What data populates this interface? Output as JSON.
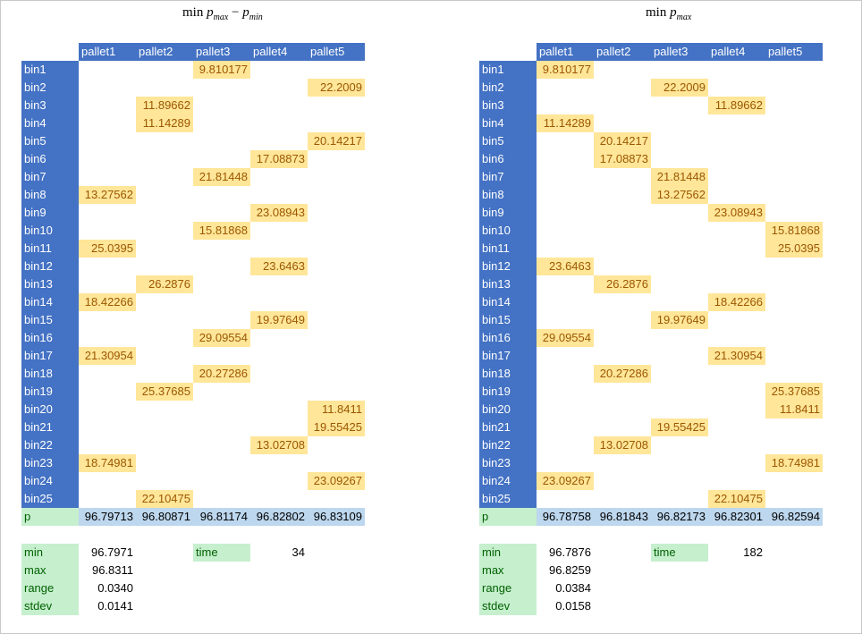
{
  "panels": [
    {
      "title_main": "min",
      "title_sub1": "max",
      "title_op": "−",
      "title_sub2": "min",
      "headers": [
        "pallet1",
        "pallet2",
        "pallet3",
        "pallet4",
        "pallet5"
      ],
      "rows": [
        {
          "label": "bin1",
          "col": 2,
          "value": "9.810177"
        },
        {
          "label": "bin2",
          "col": 4,
          "value": "22.2009"
        },
        {
          "label": "bin3",
          "col": 1,
          "value": "11.89662"
        },
        {
          "label": "bin4",
          "col": 1,
          "value": "11.14289"
        },
        {
          "label": "bin5",
          "col": 4,
          "value": "20.14217"
        },
        {
          "label": "bin6",
          "col": 3,
          "value": "17.08873"
        },
        {
          "label": "bin7",
          "col": 2,
          "value": "21.81448"
        },
        {
          "label": "bin8",
          "col": 0,
          "value": "13.27562"
        },
        {
          "label": "bin9",
          "col": 3,
          "value": "23.08943"
        },
        {
          "label": "bin10",
          "col": 2,
          "value": "15.81868"
        },
        {
          "label": "bin11",
          "col": 0,
          "value": "25.0395"
        },
        {
          "label": "bin12",
          "col": 3,
          "value": "23.6463"
        },
        {
          "label": "bin13",
          "col": 1,
          "value": "26.2876"
        },
        {
          "label": "bin14",
          "col": 0,
          "value": "18.42266"
        },
        {
          "label": "bin15",
          "col": 3,
          "value": "19.97649"
        },
        {
          "label": "bin16",
          "col": 2,
          "value": "29.09554"
        },
        {
          "label": "bin17",
          "col": 0,
          "value": "21.30954"
        },
        {
          "label": "bin18",
          "col": 2,
          "value": "20.27286"
        },
        {
          "label": "bin19",
          "col": 1,
          "value": "25.37685"
        },
        {
          "label": "bin20",
          "col": 4,
          "value": "11.8411"
        },
        {
          "label": "bin21",
          "col": 4,
          "value": "19.55425"
        },
        {
          "label": "bin22",
          "col": 3,
          "value": "13.02708"
        },
        {
          "label": "bin23",
          "col": 0,
          "value": "18.74981"
        },
        {
          "label": "bin24",
          "col": 4,
          "value": "23.09267"
        },
        {
          "label": "bin25",
          "col": 1,
          "value": "22.10475"
        }
      ],
      "p_label": "p",
      "p_values": [
        "96.79713",
        "96.80871",
        "96.81174",
        "96.82802",
        "96.83109"
      ],
      "stats": [
        {
          "label": "min",
          "value": "96.7971"
        },
        {
          "label": "max",
          "value": "96.8311"
        },
        {
          "label": "range",
          "value": "0.0340"
        },
        {
          "label": "stdev",
          "value": "0.0141"
        }
      ],
      "time_label": "time",
      "time_value": "34"
    },
    {
      "title_main": "min",
      "title_sub1": "max",
      "title_op": "",
      "title_sub2": "",
      "headers": [
        "pallet1",
        "pallet2",
        "pallet3",
        "pallet4",
        "pallet5"
      ],
      "rows": [
        {
          "label": "bin1",
          "col": 0,
          "value": "9.810177"
        },
        {
          "label": "bin2",
          "col": 2,
          "value": "22.2009"
        },
        {
          "label": "bin3",
          "col": 3,
          "value": "11.89662"
        },
        {
          "label": "bin4",
          "col": 0,
          "value": "11.14289"
        },
        {
          "label": "bin5",
          "col": 1,
          "value": "20.14217"
        },
        {
          "label": "bin6",
          "col": 1,
          "value": "17.08873"
        },
        {
          "label": "bin7",
          "col": 2,
          "value": "21.81448"
        },
        {
          "label": "bin8",
          "col": 2,
          "value": "13.27562"
        },
        {
          "label": "bin9",
          "col": 3,
          "value": "23.08943"
        },
        {
          "label": "bin10",
          "col": 4,
          "value": "15.81868"
        },
        {
          "label": "bin11",
          "col": 4,
          "value": "25.0395"
        },
        {
          "label": "bin12",
          "col": 0,
          "value": "23.6463"
        },
        {
          "label": "bin13",
          "col": 1,
          "value": "26.2876"
        },
        {
          "label": "bin14",
          "col": 3,
          "value": "18.42266"
        },
        {
          "label": "bin15",
          "col": 2,
          "value": "19.97649"
        },
        {
          "label": "bin16",
          "col": 0,
          "value": "29.09554"
        },
        {
          "label": "bin17",
          "col": 3,
          "value": "21.30954"
        },
        {
          "label": "bin18",
          "col": 1,
          "value": "20.27286"
        },
        {
          "label": "bin19",
          "col": 4,
          "value": "25.37685"
        },
        {
          "label": "bin20",
          "col": 4,
          "value": "11.8411"
        },
        {
          "label": "bin21",
          "col": 2,
          "value": "19.55425"
        },
        {
          "label": "bin22",
          "col": 1,
          "value": "13.02708"
        },
        {
          "label": "bin23",
          "col": 4,
          "value": "18.74981"
        },
        {
          "label": "bin24",
          "col": 0,
          "value": "23.09267"
        },
        {
          "label": "bin25",
          "col": 3,
          "value": "22.10475"
        }
      ],
      "p_label": "p",
      "p_values": [
        "96.78758",
        "96.81843",
        "96.82173",
        "96.82301",
        "96.82594"
      ],
      "stats": [
        {
          "label": "min",
          "value": "96.7876"
        },
        {
          "label": "max",
          "value": "96.8259"
        },
        {
          "label": "range",
          "value": "0.0384"
        },
        {
          "label": "stdev",
          "value": "0.0158"
        }
      ],
      "time_label": "time",
      "time_value": "182"
    }
  ],
  "colors": {
    "header_bg": "#4472c4",
    "value_bg": "#ffe699",
    "value_text": "#9c5700",
    "good_bg": "#c6efce",
    "good_text": "#006100",
    "p_bg": "#bdd7ee"
  }
}
